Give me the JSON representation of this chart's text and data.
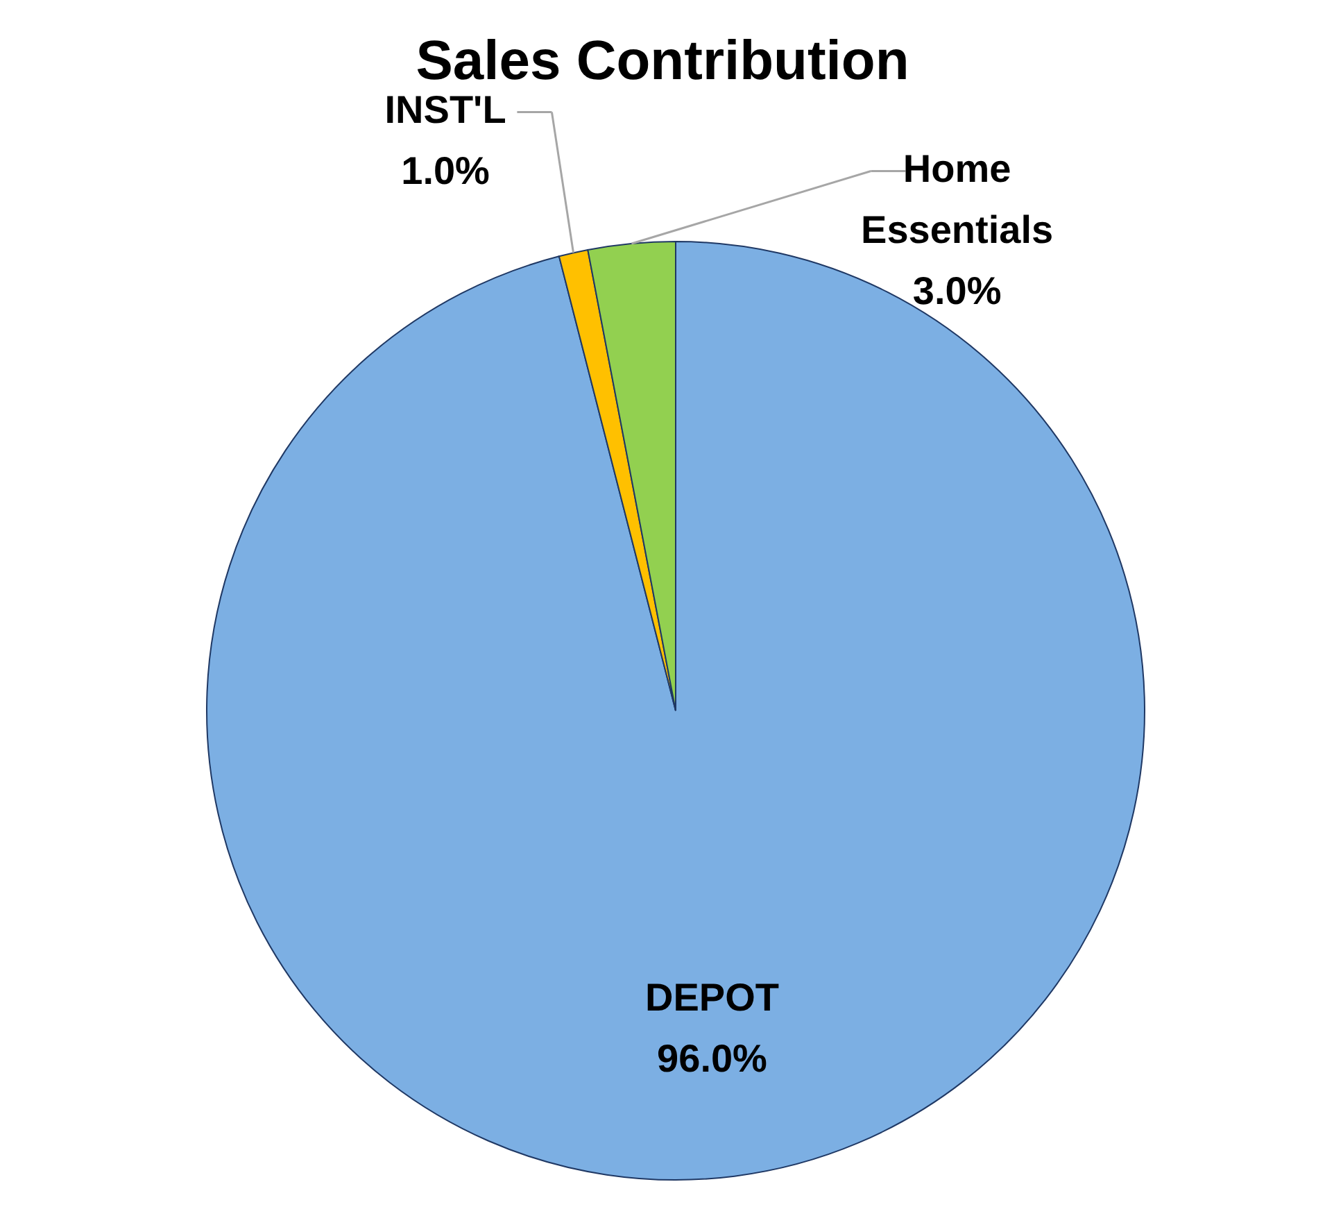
{
  "chart_data": {
    "type": "pie",
    "title": "Sales Contribution",
    "categories": [
      "DEPOT",
      "INST'L",
      "Home Essentials"
    ],
    "values": [
      96.0,
      1.0,
      3.0
    ],
    "colors": [
      "#7cafe3",
      "#ffc000",
      "#92d050"
    ],
    "value_labels": [
      "96.0%",
      "1.0%",
      "3.0%"
    ]
  }
}
